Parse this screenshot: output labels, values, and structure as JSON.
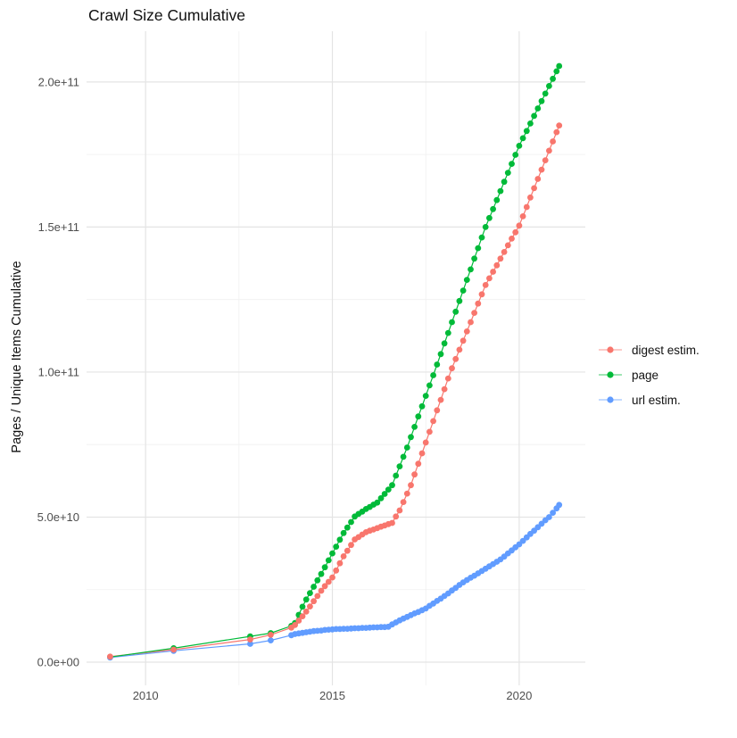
{
  "title": "Crawl Size Cumulative",
  "chart_data": {
    "type": "scatter",
    "title": "Crawl Size Cumulative",
    "xlabel": "",
    "ylabel": "Pages / Unique Items Cumulative",
    "legend_position": "right",
    "grid": "major and minor, light gray on white",
    "y_unit": "billions (value * 1e9)",
    "xlim": [
      2008.42,
      2021.77
    ],
    "ylim_e9": [
      -8,
      217.5
    ],
    "x_ticks": [
      {
        "v": 2010,
        "label": "2010"
      },
      {
        "v": 2015,
        "label": "2015"
      },
      {
        "v": 2020,
        "label": "2020"
      }
    ],
    "y_ticks": [
      {
        "v": 0,
        "label": "0.0e+00"
      },
      {
        "v": 50,
        "label": "5.0e+10"
      },
      {
        "v": 100,
        "label": "1.0e+11"
      },
      {
        "v": 150,
        "label": "1.5e+11"
      },
      {
        "v": 200,
        "label": "2.0e+11"
      }
    ],
    "x_minor": [
      2012.5,
      2017.5
    ],
    "y_minor_e9": [
      25,
      75,
      125,
      175
    ],
    "series": [
      {
        "name": "digest estim.",
        "color": "#F8766D",
        "points": [
          [
            2009.05,
            1.9
          ],
          [
            2010.75,
            4.3
          ],
          [
            2012.8,
            7.8
          ],
          [
            2013.35,
            9.4
          ],
          [
            2013.9,
            11.9
          ],
          [
            2014.0,
            12.8
          ],
          [
            2014.1,
            14.3
          ],
          [
            2014.2,
            15.8
          ],
          [
            2014.3,
            17.4
          ],
          [
            2014.4,
            19.2
          ],
          [
            2014.5,
            21.0
          ],
          [
            2014.6,
            22.8
          ],
          [
            2014.7,
            24.6
          ],
          [
            2014.8,
            26.2
          ],
          [
            2014.9,
            27.7
          ],
          [
            2015.0,
            29.2
          ],
          [
            2015.1,
            31.6
          ],
          [
            2015.2,
            34.1
          ],
          [
            2015.3,
            36.5
          ],
          [
            2015.4,
            38.4
          ],
          [
            2015.5,
            40.4
          ],
          [
            2015.6,
            42.3
          ],
          [
            2015.7,
            43.1
          ],
          [
            2015.8,
            44.0
          ],
          [
            2015.9,
            44.8
          ],
          [
            2016.0,
            45.3
          ],
          [
            2016.1,
            45.7
          ],
          [
            2016.2,
            46.2
          ],
          [
            2016.3,
            46.7
          ],
          [
            2016.4,
            47.1
          ],
          [
            2016.5,
            47.6
          ],
          [
            2016.6,
            48.0
          ],
          [
            2016.7,
            50.2
          ],
          [
            2016.8,
            52.3
          ],
          [
            2016.9,
            55.2
          ],
          [
            2017.0,
            58.1
          ],
          [
            2017.1,
            61.0
          ],
          [
            2017.2,
            64.7
          ],
          [
            2017.3,
            68.4
          ],
          [
            2017.4,
            72.0
          ],
          [
            2017.5,
            75.7
          ],
          [
            2017.6,
            79.4
          ],
          [
            2017.7,
            83.1
          ],
          [
            2017.8,
            86.8
          ],
          [
            2017.9,
            90.4
          ],
          [
            2018.0,
            94.1
          ],
          [
            2018.1,
            97.8
          ],
          [
            2018.2,
            101.3
          ],
          [
            2018.3,
            104.5
          ],
          [
            2018.4,
            107.7
          ],
          [
            2018.5,
            110.8
          ],
          [
            2018.6,
            114.0
          ],
          [
            2018.7,
            117.2
          ],
          [
            2018.8,
            120.4
          ],
          [
            2018.9,
            123.6
          ],
          [
            2019.0,
            126.8
          ],
          [
            2019.1,
            130.0
          ],
          [
            2019.2,
            132.3
          ],
          [
            2019.3,
            134.6
          ],
          [
            2019.4,
            136.8
          ],
          [
            2019.5,
            139.1
          ],
          [
            2019.6,
            141.4
          ],
          [
            2019.7,
            143.7
          ],
          [
            2019.8,
            146.0
          ],
          [
            2019.9,
            148.2
          ],
          [
            2020.0,
            150.5
          ],
          [
            2020.1,
            153.7
          ],
          [
            2020.2,
            156.9
          ],
          [
            2020.3,
            160.2
          ],
          [
            2020.4,
            163.4
          ],
          [
            2020.5,
            166.6
          ],
          [
            2020.6,
            169.8
          ],
          [
            2020.7,
            173.0
          ],
          [
            2020.8,
            176.3
          ],
          [
            2020.9,
            179.5
          ],
          [
            2021.0,
            182.7
          ],
          [
            2021.07,
            185.0
          ]
        ]
      },
      {
        "name": "page",
        "color": "#00BA38",
        "points": [
          [
            2009.05,
            1.75
          ],
          [
            2010.75,
            4.8
          ],
          [
            2012.8,
            8.9
          ],
          [
            2013.35,
            10.0
          ],
          [
            2013.9,
            12.5
          ],
          [
            2014.0,
            13.5
          ],
          [
            2014.1,
            16.3
          ],
          [
            2014.2,
            19.1
          ],
          [
            2014.3,
            21.6
          ],
          [
            2014.4,
            23.8
          ],
          [
            2014.5,
            26.0
          ],
          [
            2014.6,
            28.2
          ],
          [
            2014.7,
            30.4
          ],
          [
            2014.8,
            32.7
          ],
          [
            2014.9,
            35.1
          ],
          [
            2015.0,
            37.5
          ],
          [
            2015.1,
            39.8
          ],
          [
            2015.2,
            42.2
          ],
          [
            2015.3,
            44.5
          ],
          [
            2015.4,
            46.4
          ],
          [
            2015.5,
            48.3
          ],
          [
            2015.6,
            50.2
          ],
          [
            2015.7,
            51.1
          ],
          [
            2015.8,
            51.9
          ],
          [
            2015.9,
            52.8
          ],
          [
            2016.0,
            53.5
          ],
          [
            2016.1,
            54.3
          ],
          [
            2016.2,
            55.0
          ],
          [
            2016.3,
            56.5
          ],
          [
            2016.4,
            58.0
          ],
          [
            2016.5,
            59.5
          ],
          [
            2016.6,
            61.0
          ],
          [
            2016.7,
            64.3
          ],
          [
            2016.8,
            67.5
          ],
          [
            2016.9,
            70.8
          ],
          [
            2017.0,
            74.0
          ],
          [
            2017.1,
            77.6
          ],
          [
            2017.2,
            81.1
          ],
          [
            2017.3,
            84.7
          ],
          [
            2017.4,
            88.2
          ],
          [
            2017.5,
            91.8
          ],
          [
            2017.6,
            95.4
          ],
          [
            2017.7,
            98.9
          ],
          [
            2017.8,
            102.6
          ],
          [
            2017.9,
            106.2
          ],
          [
            2018.0,
            109.9
          ],
          [
            2018.1,
            113.5
          ],
          [
            2018.2,
            117.2
          ],
          [
            2018.3,
            120.8
          ],
          [
            2018.4,
            124.5
          ],
          [
            2018.5,
            128.1
          ],
          [
            2018.6,
            131.8
          ],
          [
            2018.7,
            135.4
          ],
          [
            2018.8,
            139.1
          ],
          [
            2018.9,
            142.7
          ],
          [
            2019.0,
            146.4
          ],
          [
            2019.1,
            150.0
          ],
          [
            2019.2,
            153.1
          ],
          [
            2019.3,
            156.2
          ],
          [
            2019.4,
            159.3
          ],
          [
            2019.5,
            162.4
          ],
          [
            2019.6,
            165.6
          ],
          [
            2019.7,
            168.7
          ],
          [
            2019.8,
            171.8
          ],
          [
            2019.9,
            174.9
          ],
          [
            2020.0,
            178.0
          ],
          [
            2020.1,
            180.6
          ],
          [
            2020.2,
            183.1
          ],
          [
            2020.3,
            185.7
          ],
          [
            2020.4,
            188.3
          ],
          [
            2020.5,
            190.9
          ],
          [
            2020.6,
            193.4
          ],
          [
            2020.7,
            196.0
          ],
          [
            2020.8,
            198.6
          ],
          [
            2020.9,
            201.1
          ],
          [
            2021.0,
            203.7
          ],
          [
            2021.07,
            205.5
          ]
        ]
      },
      {
        "name": "url estim.",
        "color": "#619CFF",
        "points": [
          [
            2009.05,
            1.6
          ],
          [
            2010.75,
            3.9
          ],
          [
            2012.8,
            6.3
          ],
          [
            2013.35,
            7.5
          ],
          [
            2013.9,
            9.3
          ],
          [
            2014.0,
            9.7
          ],
          [
            2014.1,
            9.9
          ],
          [
            2014.2,
            10.1
          ],
          [
            2014.3,
            10.3
          ],
          [
            2014.4,
            10.5
          ],
          [
            2014.5,
            10.7
          ],
          [
            2014.6,
            10.8
          ],
          [
            2014.7,
            10.9
          ],
          [
            2014.8,
            11.1
          ],
          [
            2014.9,
            11.2
          ],
          [
            2015.0,
            11.3
          ],
          [
            2015.1,
            11.4
          ],
          [
            2015.2,
            11.4
          ],
          [
            2015.3,
            11.5
          ],
          [
            2015.4,
            11.5
          ],
          [
            2015.5,
            11.6
          ],
          [
            2015.6,
            11.7
          ],
          [
            2015.7,
            11.7
          ],
          [
            2015.8,
            11.8
          ],
          [
            2015.9,
            11.8
          ],
          [
            2016.0,
            11.9
          ],
          [
            2016.1,
            12.0
          ],
          [
            2016.2,
            12.0
          ],
          [
            2016.3,
            12.1
          ],
          [
            2016.4,
            12.1
          ],
          [
            2016.5,
            12.2
          ],
          [
            2016.6,
            13.0
          ],
          [
            2016.7,
            13.7
          ],
          [
            2016.8,
            14.4
          ],
          [
            2016.9,
            15.0
          ],
          [
            2017.0,
            15.6
          ],
          [
            2017.1,
            16.2
          ],
          [
            2017.2,
            16.8
          ],
          [
            2017.3,
            17.3
          ],
          [
            2017.4,
            17.9
          ],
          [
            2017.5,
            18.5
          ],
          [
            2017.6,
            19.4
          ],
          [
            2017.7,
            20.2
          ],
          [
            2017.8,
            21.1
          ],
          [
            2017.9,
            21.9
          ],
          [
            2018.0,
            22.8
          ],
          [
            2018.1,
            23.7
          ],
          [
            2018.2,
            24.7
          ],
          [
            2018.3,
            25.6
          ],
          [
            2018.4,
            26.6
          ],
          [
            2018.5,
            27.5
          ],
          [
            2018.6,
            28.3
          ],
          [
            2018.7,
            29.1
          ],
          [
            2018.8,
            29.8
          ],
          [
            2018.9,
            30.6
          ],
          [
            2019.0,
            31.4
          ],
          [
            2019.1,
            32.2
          ],
          [
            2019.2,
            33.0
          ],
          [
            2019.3,
            33.8
          ],
          [
            2019.4,
            34.6
          ],
          [
            2019.5,
            35.4
          ],
          [
            2019.6,
            36.4
          ],
          [
            2019.7,
            37.5
          ],
          [
            2019.8,
            38.5
          ],
          [
            2019.9,
            39.6
          ],
          [
            2020.0,
            40.6
          ],
          [
            2020.1,
            41.8
          ],
          [
            2020.2,
            43.0
          ],
          [
            2020.3,
            44.2
          ],
          [
            2020.4,
            45.3
          ],
          [
            2020.5,
            46.5
          ],
          [
            2020.6,
            47.7
          ],
          [
            2020.7,
            48.9
          ],
          [
            2020.8,
            50.0
          ],
          [
            2020.9,
            51.5
          ],
          [
            2021.0,
            53.0
          ],
          [
            2021.07,
            54.2
          ]
        ]
      }
    ]
  },
  "colors": {
    "grid_major": "#e4e4e4",
    "grid_minor": "#f0f0f0",
    "tick_text": "#4e4e4e",
    "title_text": "#111111"
  }
}
